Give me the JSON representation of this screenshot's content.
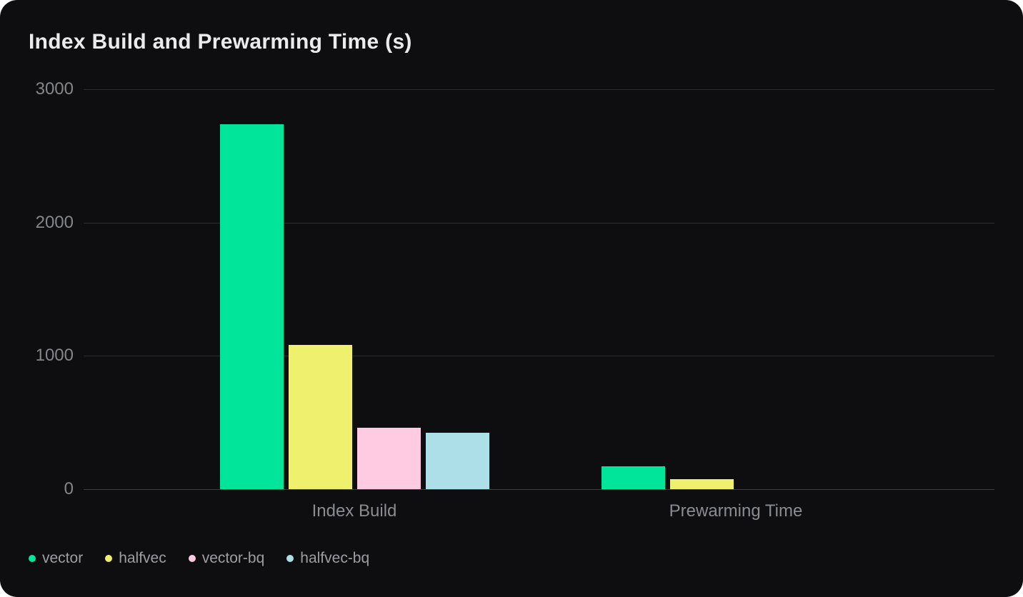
{
  "card": {
    "background": "#0e0e10",
    "page_background": "#ffffff"
  },
  "chart_data": {
    "type": "bar",
    "title": "Index Build and Prewarming Time (s)",
    "categories": [
      "Index Build",
      "Prewarming Time"
    ],
    "series": [
      {
        "name": "vector",
        "color": "#00e599",
        "values": [
          2735,
          169
        ]
      },
      {
        "name": "halfvec",
        "color": "#eff06e",
        "values": [
          1080,
          76
        ]
      },
      {
        "name": "vector-bq",
        "color": "#ffcbe2",
        "values": [
          460,
          0
        ]
      },
      {
        "name": "halfvec-bq",
        "color": "#addfe9",
        "values": [
          424,
          0
        ]
      }
    ],
    "ylim": [
      0,
      3000
    ],
    "yticks": [
      0,
      1000,
      2000,
      3000
    ],
    "grid": true,
    "legend_position": "bottom-left",
    "legend": [
      "vector",
      "halfvec",
      "vector-bq",
      "halfvec-bq"
    ],
    "colors": {
      "title_text": "#ebebed",
      "axis_text": "#85868c",
      "gridline": "#2e2e32",
      "zero_line": "#3c3c41",
      "legend_text": "#9d9ea3"
    }
  }
}
